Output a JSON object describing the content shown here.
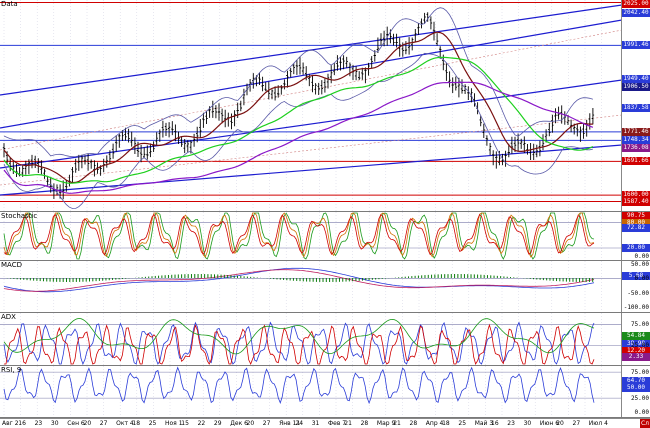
{
  "panels": {
    "price": {
      "title": "Data",
      "tags": [
        {
          "text": "2025.00",
          "bg": "#d00000",
          "y": 0.012
        },
        {
          "text": "2042.40",
          "bg": "#2a3cd8",
          "y": 0.06
        },
        {
          "text": "1991.46",
          "bg": "#2a3cd8",
          "y": 0.215
        },
        {
          "text": "1949.40",
          "bg": "#2a3cd8",
          "y": 0.375
        },
        {
          "text": "1906.50",
          "bg": "#1a1a8a",
          "y": 0.41
        },
        {
          "text": "1837.58",
          "bg": "#2a3cd8",
          "y": 0.51
        },
        {
          "text": "1771.46",
          "bg": "#8a1a1a",
          "y": 0.625
        },
        {
          "text": "1748.34",
          "bg": "#2a3cd8",
          "y": 0.665
        },
        {
          "text": "1736.08",
          "bg": "#8a1a8a",
          "y": 0.7
        },
        {
          "text": "1691.66",
          "bg": "#d00000",
          "y": 0.765
        },
        {
          "text": "1600.00",
          "bg": "#d00000",
          "y": 0.925
        },
        {
          "text": "1587.40",
          "bg": "#d00000",
          "y": 0.955
        }
      ]
    },
    "stochastic": {
      "title": "Stochastic",
      "tags": [
        {
          "text": "90.75",
          "bg": "#d00000",
          "y": 0.08
        },
        {
          "text": "80.00",
          "bg": "#c86400",
          "y": 0.22
        },
        {
          "text": "72.82",
          "bg": "#2a3cd8",
          "y": 0.33
        },
        {
          "text": "20.00",
          "bg": "#2a3cd8",
          "y": 0.75
        }
      ],
      "ticks": [
        {
          "text": "0.00",
          "y": 0.93
        }
      ]
    },
    "macd": {
      "title": "MACD",
      "tags": [
        {
          "text": "5.68",
          "bg": "#2a3cd8",
          "y": 0.3
        }
      ],
      "ticks": [
        {
          "text": "50.00",
          "y": 0.06
        },
        {
          "text": "0.00",
          "y": 0.34
        },
        {
          "text": "-50.00",
          "y": 0.63
        },
        {
          "text": "-100.00",
          "y": 0.9
        }
      ]
    },
    "adx": {
      "title": "ADX",
      "tags": [
        {
          "text": "54.84",
          "bg": "#1a8a1a",
          "y": 0.44
        },
        {
          "text": "38.98",
          "bg": "#2a3cd8",
          "y": 0.6
        },
        {
          "text": "12.20",
          "bg": "#d00000",
          "y": 0.73
        },
        {
          "text": "2.33",
          "bg": "#8a1a8a",
          "y": 0.84
        }
      ],
      "ticks": [
        {
          "text": "75.00",
          "y": 0.22
        },
        {
          "text": "25.00",
          "y": 0.62
        }
      ]
    },
    "rsi": {
      "title": "RSI, 9",
      "tags": [
        {
          "text": "64.70",
          "bg": "#2a3cd8",
          "y": 0.3
        },
        {
          "text": "50.00",
          "bg": "#2a3cd8",
          "y": 0.43
        }
      ],
      "ticks": [
        {
          "text": "75.00",
          "y": 0.12
        },
        {
          "text": "25.00",
          "y": 0.63
        },
        {
          "text": "0.00",
          "y": 0.9
        }
      ]
    }
  },
  "x_axis_labels": [
    "Авг 2",
    "16",
    "23",
    "30",
    "Сен 6",
    "20",
    "27",
    "Окт 4",
    "18",
    "25",
    "Ноя 1",
    "15",
    "22",
    "29",
    "Дек 6",
    "20",
    "27",
    "Янв 11",
    "24",
    "31",
    "Фев 7",
    "21",
    "28",
    "Мар 9",
    "21",
    "28",
    "Апр 4",
    "18",
    "25",
    "Май 3",
    "16",
    "23",
    "30",
    "Июн 6",
    "20",
    "27",
    "Июл 4"
  ],
  "corner_label": "Сл",
  "colors": {
    "price_bars": "#000000",
    "channel": "#1c1cd0",
    "bollinger": "#5a5aa8",
    "ma_fast": "#7a1010",
    "ma_mid": "#1ed01e",
    "ma_slow": "#8a18c8",
    "hline_red": "#d00000",
    "hline_blue": "#2a3cd8"
  }
}
